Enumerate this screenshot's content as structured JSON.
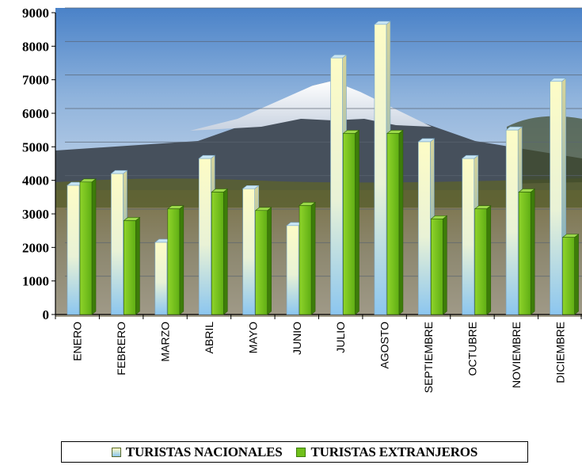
{
  "chart_data": {
    "type": "bar",
    "title": "",
    "xlabel": "",
    "ylabel": "",
    "ylim": [
      0,
      9000
    ],
    "yticks": [
      "0",
      "1000",
      "2000",
      "3000",
      "4000",
      "5000",
      "6000",
      "7000",
      "8000",
      "9000"
    ],
    "grid": true,
    "legend_position": "bottom",
    "categories": [
      "ENERO",
      "FEBRERO",
      "MARZO",
      "ABRIL",
      "MAYO",
      "JUNIO",
      "JULIO",
      "AGOSTO",
      "SEPTIEMBRE",
      "OCTUBRE",
      "NOVIEMBRE",
      "DICIEMBRE"
    ],
    "series": [
      {
        "name": "TURISTAS NACIONALES",
        "color": "#fdfcc6",
        "color_bottom": "#8cc6ef",
        "values": [
          3850,
          4200,
          2150,
          4650,
          3750,
          2650,
          7650,
          8650,
          5150,
          4650,
          5500,
          6950
        ]
      },
      {
        "name": "TURISTAS EXTRANJEROS",
        "color": "#6fbf1a",
        "color_dark": "#3d7d09",
        "values": [
          3950,
          2800,
          3150,
          3650,
          3100,
          3250,
          5400,
          5400,
          2850,
          3150,
          3650,
          2300
        ]
      }
    ]
  }
}
